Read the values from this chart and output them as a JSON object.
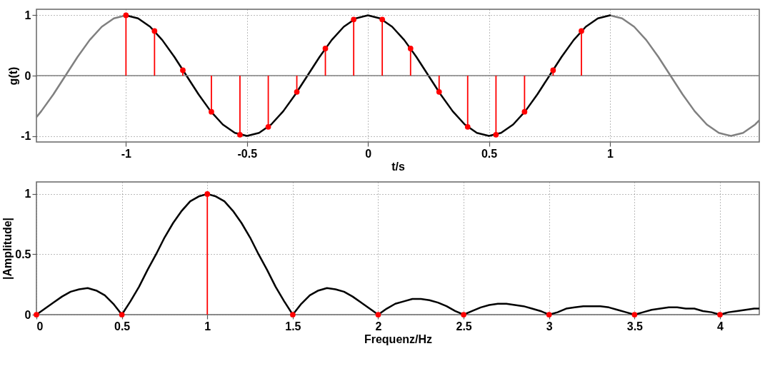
{
  "chart_data": [
    {
      "type": "line",
      "xlabel": "t/s",
      "ylabel": "g(t)",
      "xlim": [
        -1.37,
        1.617
      ],
      "ylim": [
        -1.1,
        1.1
      ],
      "xticks": [
        -1,
        -0.5,
        0,
        0.5,
        1
      ],
      "yticks": [
        -1,
        0,
        1
      ],
      "grid": true,
      "line_style": "solid",
      "ref_lines": [
        {
          "axis": "y",
          "value": 0,
          "color": "#808080"
        }
      ],
      "series": [
        {
          "color": "#808080",
          "x": [
            -1.37,
            -1.35,
            -1.3,
            -1.25,
            -1.2,
            -1.15,
            -1.1,
            -1.05,
            -1.0,
            0,
            1.0,
            1.05,
            1.1,
            1.15,
            1.2,
            1.25,
            1.3,
            1.35,
            1.4,
            1.45,
            1.5,
            1.55,
            1.6,
            1.617
          ],
          "values": [
            -0.69,
            -0.59,
            -0.31,
            0,
            0.31,
            0.59,
            0.81,
            0.95,
            1,
            null,
            1,
            0.95,
            0.81,
            0.59,
            0.31,
            0,
            -0.31,
            -0.59,
            -0.81,
            -0.95,
            -1,
            -0.95,
            -0.81,
            -0.74
          ]
        },
        {
          "color": "#000000",
          "x": [
            -1.0,
            -0.95,
            -0.9,
            -0.85,
            -0.8,
            -0.75,
            -0.7,
            -0.65,
            -0.6,
            -0.55,
            -0.5,
            -0.45,
            -0.4,
            -0.35,
            -0.3,
            -0.25,
            -0.2,
            -0.15,
            -0.1,
            -0.05,
            0,
            0.05,
            0.1,
            0.15,
            0.2,
            0.25,
            0.3,
            0.35,
            0.4,
            0.45,
            0.5,
            0.55,
            0.6,
            0.65,
            0.7,
            0.75,
            0.8,
            0.85,
            0.9,
            0.95,
            1.0
          ],
          "values": [
            1,
            0.95,
            0.81,
            0.59,
            0.31,
            0,
            -0.31,
            -0.59,
            -0.81,
            -0.95,
            -1,
            -0.95,
            -0.81,
            -0.59,
            -0.31,
            0,
            0.31,
            0.59,
            0.81,
            0.95,
            1,
            0.95,
            0.81,
            0.59,
            0.31,
            0,
            -0.31,
            -0.59,
            -0.81,
            -0.95,
            -1,
            -0.95,
            -0.81,
            -0.59,
            -0.31,
            0,
            0.31,
            0.59,
            0.81,
            0.95,
            1
          ]
        },
        {
          "type": "lollipop",
          "color": "#ff0000",
          "marker": "circle",
          "x": [
            -1.0,
            -0.882,
            -0.765,
            -0.647,
            -0.529,
            -0.412,
            -0.294,
            -0.176,
            -0.059,
            0.059,
            0.176,
            0.294,
            0.412,
            0.529,
            0.647,
            0.765,
            0.882
          ],
          "values": [
            1,
            0.74,
            0.09,
            -0.6,
            -0.98,
            -0.85,
            -0.27,
            0.45,
            0.93,
            0.93,
            0.45,
            -0.27,
            -0.85,
            -0.98,
            -0.6,
            0.09,
            0.74
          ]
        }
      ]
    },
    {
      "type": "line",
      "xlabel": "Frequenz/Hz",
      "ylabel": "|Amplitude|",
      "xlim": [
        0,
        4.23
      ],
      "ylim": [
        0,
        1.1
      ],
      "xticks": [
        0,
        0.5,
        1,
        1.5,
        2,
        2.5,
        3,
        3.5,
        4
      ],
      "yticks": [
        0,
        0.5,
        1
      ],
      "grid": true,
      "line_style": "solid",
      "series": [
        {
          "color": "#000000",
          "x": [
            0,
            0.05,
            0.1,
            0.15,
            0.2,
            0.25,
            0.3,
            0.35,
            0.4,
            0.45,
            0.5,
            0.55,
            0.6,
            0.65,
            0.7,
            0.75,
            0.8,
            0.85,
            0.9,
            0.95,
            1,
            1.05,
            1.1,
            1.15,
            1.2,
            1.25,
            1.3,
            1.35,
            1.4,
            1.45,
            1.5,
            1.55,
            1.6,
            1.65,
            1.7,
            1.75,
            1.8,
            1.85,
            1.9,
            1.95,
            2,
            2.05,
            2.1,
            2.15,
            2.2,
            2.25,
            2.3,
            2.35,
            2.4,
            2.45,
            2.5,
            2.55,
            2.6,
            2.65,
            2.7,
            2.75,
            2.8,
            2.85,
            2.9,
            2.95,
            3,
            3.05,
            3.1,
            3.15,
            3.2,
            3.25,
            3.3,
            3.35,
            3.4,
            3.45,
            3.5,
            3.55,
            3.6,
            3.65,
            3.7,
            3.75,
            3.8,
            3.85,
            3.9,
            3.95,
            4,
            4.05,
            4.1,
            4.15,
            4.2,
            4.23
          ],
          "values": [
            0,
            0.05,
            0.1,
            0.15,
            0.19,
            0.21,
            0.22,
            0.2,
            0.16,
            0.09,
            0,
            0.11,
            0.23,
            0.37,
            0.5,
            0.64,
            0.76,
            0.86,
            0.94,
            0.98,
            1,
            0.98,
            0.94,
            0.86,
            0.76,
            0.64,
            0.5,
            0.37,
            0.23,
            0.11,
            0,
            0.09,
            0.16,
            0.2,
            0.22,
            0.21,
            0.19,
            0.15,
            0.1,
            0.05,
            0,
            0.05,
            0.09,
            0.11,
            0.13,
            0.13,
            0.12,
            0.1,
            0.07,
            0.03,
            0,
            0.03,
            0.06,
            0.08,
            0.09,
            0.09,
            0.08,
            0.07,
            0.05,
            0.03,
            0,
            0.02,
            0.05,
            0.06,
            0.07,
            0.07,
            0.07,
            0.06,
            0.04,
            0.02,
            0,
            0.02,
            0.04,
            0.05,
            0.06,
            0.06,
            0.05,
            0.05,
            0.03,
            0.02,
            0,
            0.02,
            0.03,
            0.04,
            0.05,
            0.05
          ]
        },
        {
          "type": "lollipop",
          "color": "#ff0000",
          "marker": "circle",
          "x": [
            0,
            0.5,
            1,
            1.5,
            2,
            2.5,
            3,
            3.5,
            4
          ],
          "values": [
            0,
            0,
            1,
            0,
            0,
            0,
            0,
            0,
            0
          ]
        }
      ]
    }
  ]
}
